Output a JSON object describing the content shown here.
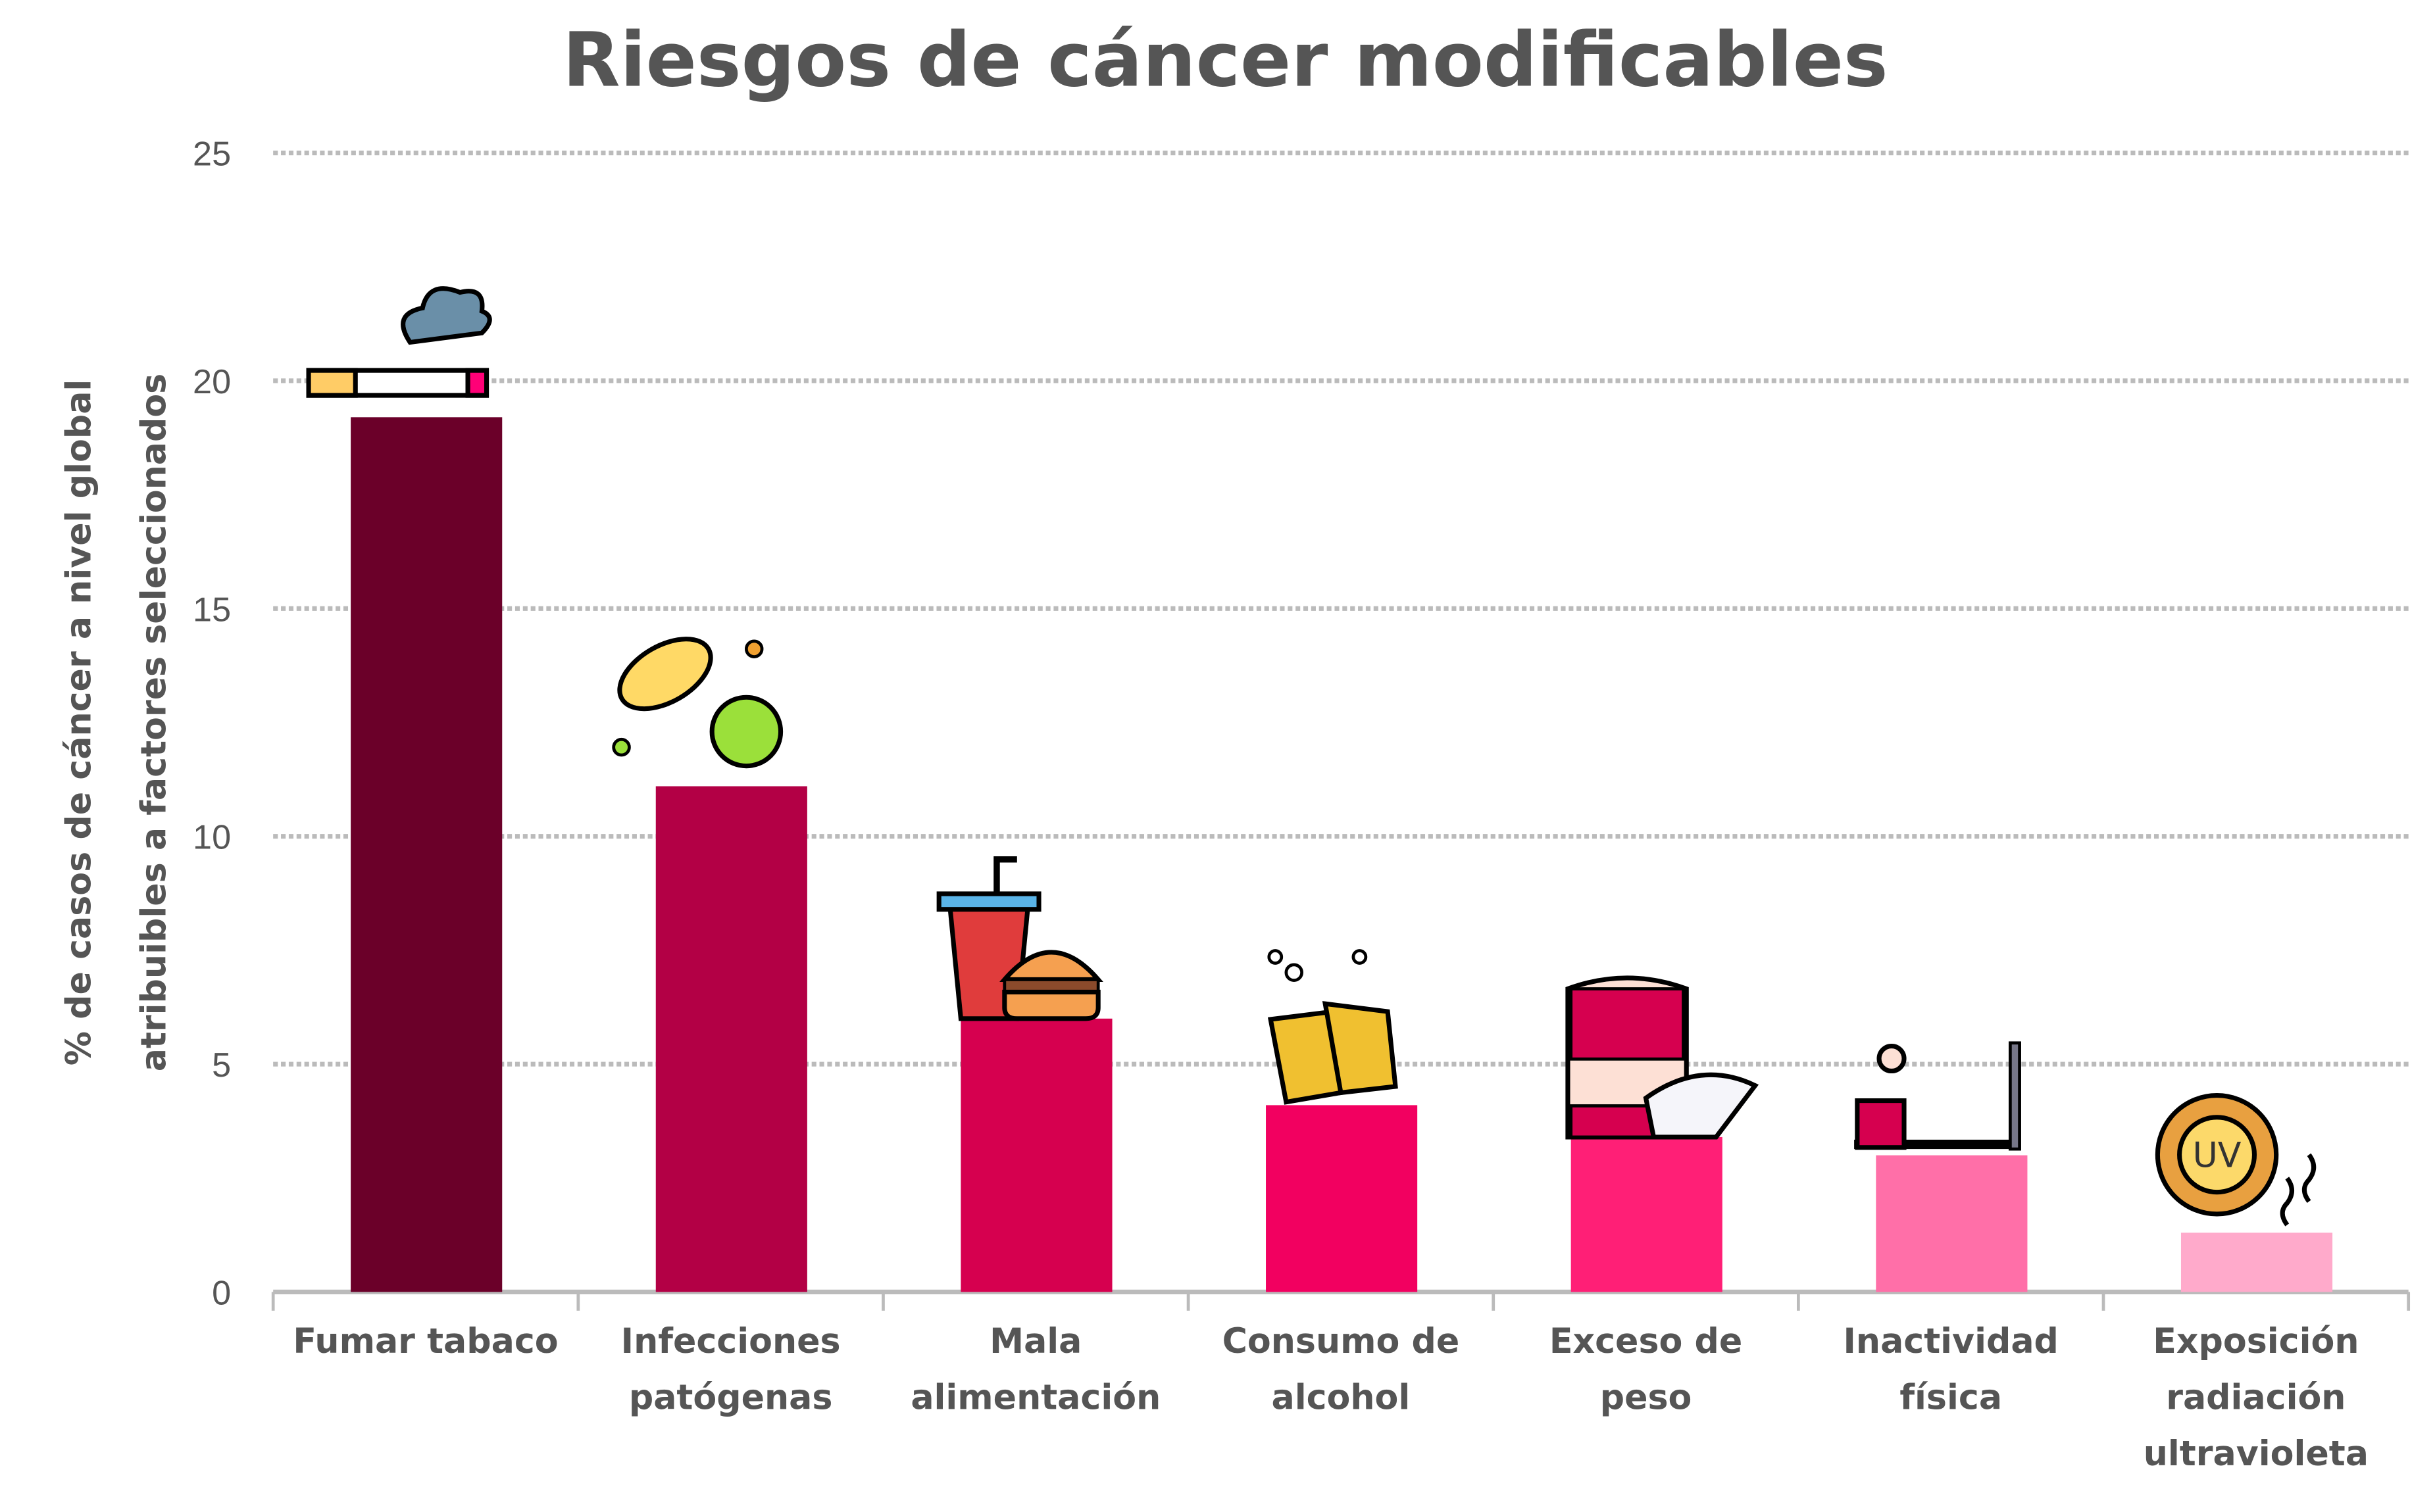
{
  "chart_data": {
    "type": "bar",
    "title": "Riesgos de cáncer modificables",
    "xlabel": "",
    "ylabel": [
      "% de casos de cáncer a nivel global",
      "atribuibles a factores seleccionados"
    ],
    "ylim": [
      0,
      25
    ],
    "yticks": [
      0,
      5,
      10,
      15,
      20,
      25
    ],
    "grid": true,
    "categories": [
      [
        "Fumar tabaco"
      ],
      [
        "Infecciones",
        "patógenas"
      ],
      [
        "Mala",
        "alimentación"
      ],
      [
        "Consumo de",
        "alcohol"
      ],
      [
        "Exceso de",
        "peso"
      ],
      [
        "Inactividad",
        "física"
      ],
      [
        "Exposición",
        "radiación",
        "ultravioleta"
      ]
    ],
    "values": [
      19.2,
      11.1,
      6.0,
      4.1,
      3.4,
      3.0,
      1.3
    ],
    "colors": [
      "#6b0029",
      "#b30045",
      "#d6004f",
      "#f20060",
      "#ff1f76",
      "#ff6fa8",
      "#ffaacb"
    ],
    "icons": [
      "cigarette-icon",
      "germs-icon",
      "fast-food-icon",
      "beer-mugs-icon",
      "weight-scale-icon",
      "sedentary-tv-icon",
      "uv-sun-icon"
    ],
    "uv_icon_text": "UV"
  }
}
